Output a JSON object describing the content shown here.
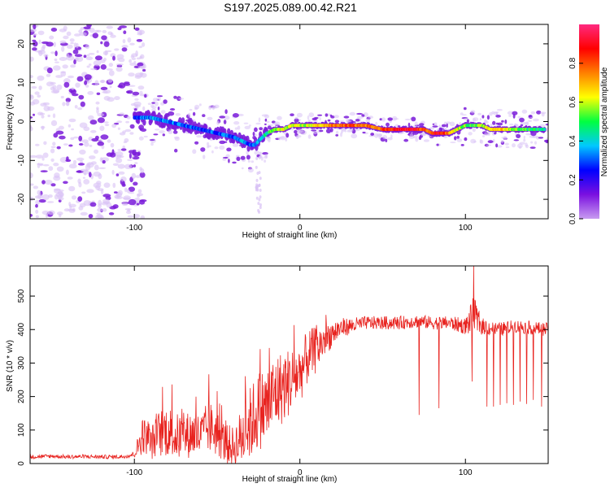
{
  "title": "S197.2025.089.00.42.R21",
  "colors": {
    "snr_line": "#e8231f",
    "scatter_purple": "#7a1bd9",
    "scatter_light": "#d9c2f5"
  },
  "chart_data": [
    {
      "type": "heatmap",
      "xlabel": "Height of straight line (km)",
      "ylabel": "Frequency (Hz)",
      "xlim": [
        -163,
        150
      ],
      "ylim": [
        -25,
        25
      ],
      "x_ticks": [
        -100,
        0,
        100
      ],
      "x_tick_labels": [
        "-100",
        "0",
        "100"
      ],
      "y_ticks": [
        -20,
        -10,
        0,
        10,
        20
      ],
      "y_tick_labels": [
        "-20",
        "-10",
        "0",
        "10",
        "20"
      ],
      "colorbar": {
        "label": "Normalized spectral amplitude",
        "range": [
          0,
          1
        ],
        "ticks": [
          0,
          0.2,
          0.4,
          0.6,
          0.8
        ],
        "tick_labels": [
          "0.0",
          "0.2",
          "0.4",
          "0.6",
          "0.8"
        ],
        "colormap": [
          "#c89bf0",
          "#7a10e0",
          "#0000ff",
          "#00c8ff",
          "#00ff40",
          "#ffff00",
          "#ff8000",
          "#ff0000",
          "#ff2a80"
        ]
      },
      "ridge": {
        "x": [
          -100,
          -90,
          -80,
          -70,
          -60,
          -50,
          -40,
          -35,
          -30,
          -27,
          -25,
          -20,
          -15,
          -10,
          -5,
          0,
          5,
          10,
          20,
          30,
          40,
          50,
          60,
          70,
          75,
          80,
          85,
          90,
          95,
          100,
          105,
          110,
          115,
          120,
          130,
          140,
          148
        ],
        "freq": [
          1,
          1,
          0,
          -1,
          -2,
          -3,
          -4,
          -5,
          -6,
          -6,
          -5,
          -3,
          -2,
          -2,
          -1,
          -1,
          -1,
          -1,
          -1,
          -1,
          -1,
          -2,
          -2,
          -2,
          -2,
          -3,
          -3,
          -3,
          -2,
          -1,
          -1,
          -1,
          -2,
          -2,
          -2,
          -2,
          -2
        ],
        "amplitude": [
          0.3,
          0.35,
          0.3,
          0.3,
          0.25,
          0.3,
          0.3,
          0.35,
          0.3,
          0.3,
          0.35,
          0.45,
          0.55,
          0.6,
          0.6,
          0.55,
          0.6,
          0.65,
          0.75,
          0.8,
          0.75,
          0.8,
          0.9,
          0.9,
          0.75,
          0.85,
          0.9,
          0.75,
          0.6,
          0.55,
          0.5,
          0.55,
          0.65,
          0.7,
          0.55,
          0.5,
          0.45
        ]
      }
    },
    {
      "type": "line",
      "xlabel": "Height of straight line (km)",
      "ylabel": "SNR (10 * v/v)",
      "xlim": [
        -163,
        150
      ],
      "ylim": [
        0,
        590
      ],
      "x_ticks": [
        -100,
        0,
        100
      ],
      "x_tick_labels": [
        "-100",
        "0",
        "100"
      ],
      "y_ticks": [
        0,
        100,
        200,
        300,
        400,
        500
      ],
      "y_tick_labels": [
        "0",
        "100",
        "200",
        "300",
        "400",
        "500"
      ],
      "series": [
        {
          "x": [
            -163,
            -150,
            -140,
            -130,
            -120,
            -110,
            -105,
            -100,
            -97,
            -95,
            -92,
            -90,
            -85,
            -80,
            -75,
            -70,
            -65,
            -60,
            -55,
            -50,
            -45,
            -40,
            -35,
            -30,
            -25,
            -20,
            -15,
            -10,
            -5,
            0,
            5,
            10,
            15,
            20,
            25,
            30,
            40,
            50,
            60,
            70,
            80,
            90,
            100,
            105,
            110,
            120,
            130,
            140,
            150
          ],
          "y": [
            20,
            22,
            20,
            21,
            20,
            20,
            22,
            28,
            60,
            90,
            70,
            60,
            90,
            100,
            80,
            80,
            90,
            80,
            110,
            90,
            60,
            50,
            80,
            120,
            160,
            170,
            210,
            230,
            250,
            270,
            320,
            340,
            370,
            390,
            405,
            410,
            420,
            420,
            420,
            425,
            420,
            420,
            410,
            440,
            410,
            400,
            410,
            405,
            400
          ],
          "noise": [
            6,
            6,
            6,
            6,
            6,
            6,
            6,
            10,
            40,
            60,
            45,
            50,
            70,
            80,
            70,
            70,
            70,
            70,
            80,
            70,
            60,
            60,
            90,
            110,
            120,
            120,
            120,
            110,
            100,
            90,
            80,
            70,
            50,
            40,
            30,
            25,
            20,
            20,
            20,
            20,
            20,
            20,
            25,
            60,
            25,
            20,
            20,
            20,
            20
          ]
        }
      ],
      "dropouts": [
        {
          "x": 72,
          "y": 145
        },
        {
          "x": 84,
          "y": 165
        },
        {
          "x": 104,
          "y": 245
        },
        {
          "x": 113,
          "y": 170
        },
        {
          "x": 117,
          "y": 170
        },
        {
          "x": 121,
          "y": 175
        },
        {
          "x": 125,
          "y": 180
        },
        {
          "x": 129,
          "y": 175
        },
        {
          "x": 133,
          "y": 185
        },
        {
          "x": 137,
          "y": 178
        },
        {
          "x": 141,
          "y": 190
        },
        {
          "x": 146,
          "y": 170
        }
      ],
      "peak": {
        "x": 105,
        "y": 590
      }
    }
  ]
}
